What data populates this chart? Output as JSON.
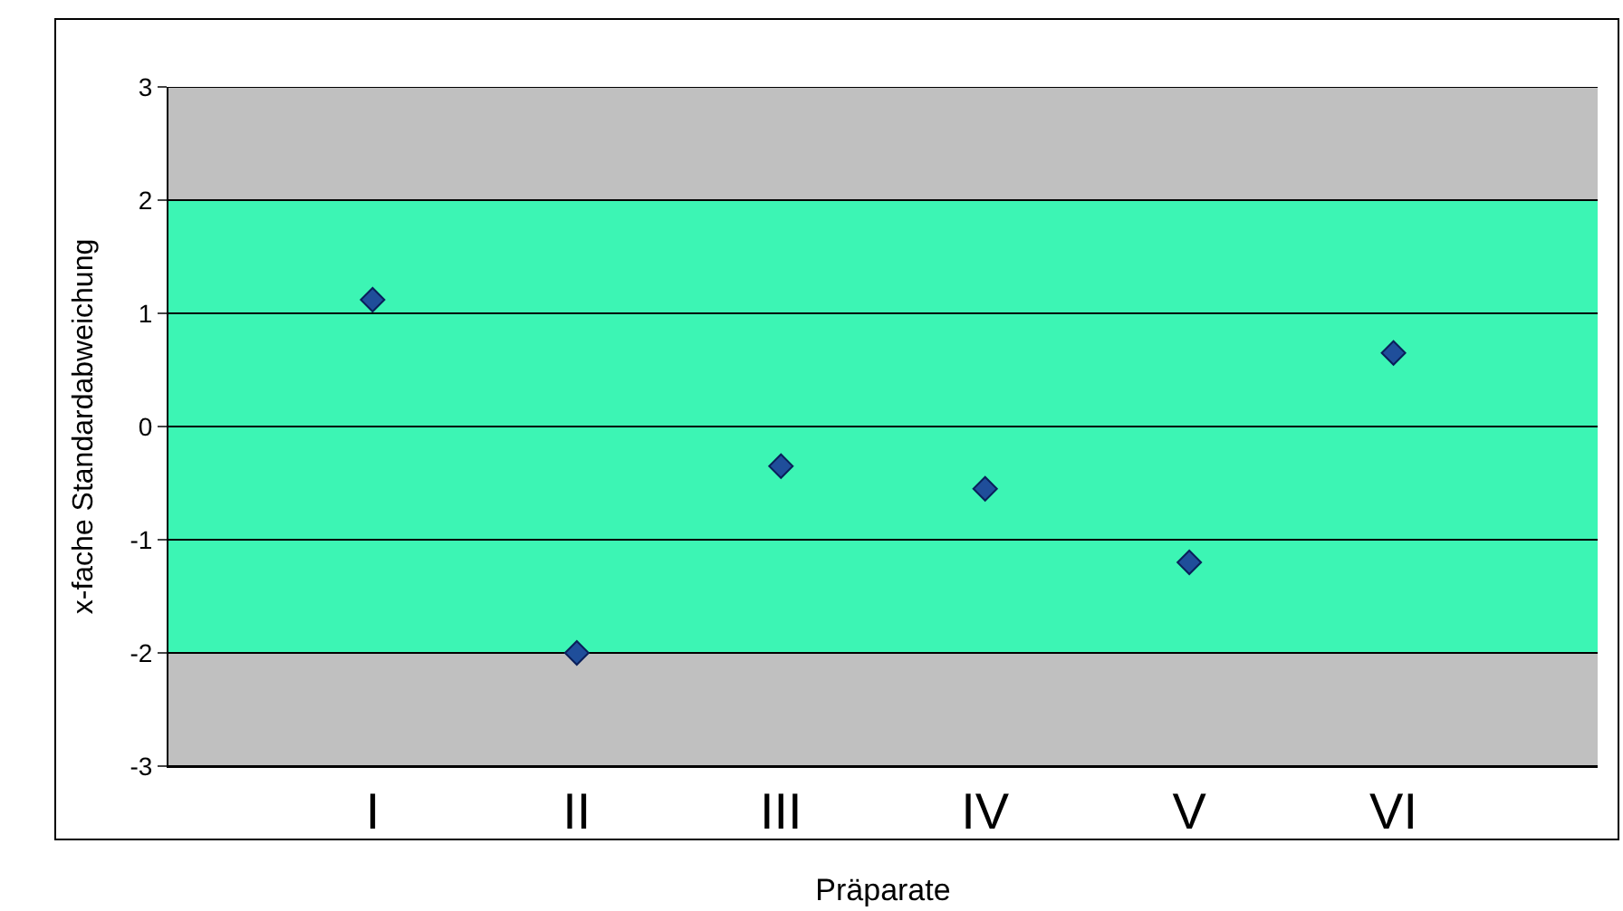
{
  "chart_data": {
    "type": "scatter",
    "xlabel": "Präparate",
    "ylabel": "x-fache Standardabweichung",
    "categories": [
      "I",
      "II",
      "III",
      "IV",
      "V",
      "VI"
    ],
    "series": [
      {
        "color": "#1f4e9a",
        "values": [
          1.12,
          -2.0,
          -0.35,
          -0.55,
          -1.2,
          0.65
        ]
      }
    ],
    "ylim": [
      -3,
      3
    ],
    "yticks": [
      -3,
      -2,
      -1,
      0,
      1,
      2,
      3
    ],
    "grid": "y",
    "marker": "diamond",
    "bands": [
      {
        "axis": "y",
        "from": -2,
        "to": 2,
        "color": "#3cf5b4"
      }
    ]
  }
}
